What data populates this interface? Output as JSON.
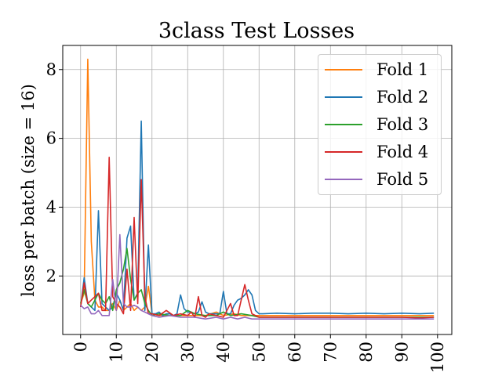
{
  "chart_data": {
    "type": "line",
    "title": "3class Test Losses",
    "xlabel": "",
    "ylabel": "loss per batch (size = 16)",
    "xlim": [
      -5,
      104
    ],
    "ylim": [
      0.3,
      8.7
    ],
    "xticks": [
      0,
      10,
      20,
      30,
      40,
      50,
      60,
      70,
      80,
      90,
      100
    ],
    "xtick_labels": [
      "0",
      "10",
      "20",
      "30",
      "40",
      "50",
      "60",
      "70",
      "80",
      "90",
      "100"
    ],
    "yticks": [
      2,
      4,
      6,
      8
    ],
    "ytick_labels": [
      "2",
      "4",
      "6",
      "8"
    ],
    "grid": true,
    "legend_position": "top-right",
    "series": [
      {
        "name": "Fold 1",
        "color": "#ff7f0e",
        "points": [
          [
            0,
            1.2
          ],
          [
            1,
            1.5
          ],
          [
            2,
            8.3
          ],
          [
            3,
            3.0
          ],
          [
            4,
            1.3
          ],
          [
            5,
            1.1
          ],
          [
            6,
            1.1
          ],
          [
            7,
            1.0
          ],
          [
            8,
            1.0
          ],
          [
            9,
            1.2
          ],
          [
            10,
            1.0
          ],
          [
            11,
            1.3
          ],
          [
            12,
            1.0
          ],
          [
            13,
            1.1
          ],
          [
            14,
            1.2
          ],
          [
            15,
            1.0
          ],
          [
            16,
            1.1
          ],
          [
            17,
            1.0
          ],
          [
            18,
            1.1
          ],
          [
            19,
            1.7
          ],
          [
            20,
            0.9
          ],
          [
            22,
            0.85
          ],
          [
            25,
            0.85
          ],
          [
            30,
            0.85
          ],
          [
            35,
            0.85
          ],
          [
            38,
            0.95
          ],
          [
            40,
            0.85
          ],
          [
            43,
            0.9
          ],
          [
            45,
            0.85
          ],
          [
            50,
            0.85
          ],
          [
            60,
            0.85
          ],
          [
            70,
            0.85
          ],
          [
            80,
            0.85
          ],
          [
            90,
            0.85
          ],
          [
            99,
            0.85
          ]
        ]
      },
      {
        "name": "Fold 2",
        "color": "#1f77b4",
        "points": [
          [
            0,
            1.1
          ],
          [
            1,
            1.95
          ],
          [
            2,
            1.2
          ],
          [
            3,
            1.1
          ],
          [
            4,
            1.0
          ],
          [
            5,
            3.9
          ],
          [
            6,
            1.2
          ],
          [
            7,
            1.1
          ],
          [
            8,
            1.0
          ],
          [
            9,
            1.1
          ],
          [
            10,
            1.5
          ],
          [
            11,
            1.3
          ],
          [
            12,
            1.0
          ],
          [
            13,
            3.1
          ],
          [
            14,
            3.45
          ],
          [
            15,
            1.3
          ],
          [
            16,
            1.5
          ],
          [
            17,
            6.5
          ],
          [
            18,
            1.0
          ],
          [
            19,
            2.9
          ],
          [
            20,
            0.9
          ],
          [
            21,
            0.9
          ],
          [
            22,
            0.95
          ],
          [
            23,
            0.85
          ],
          [
            24,
            0.9
          ],
          [
            25,
            0.9
          ],
          [
            26,
            0.85
          ],
          [
            27,
            0.9
          ],
          [
            28,
            1.45
          ],
          [
            29,
            1.05
          ],
          [
            30,
            0.95
          ],
          [
            31,
            0.95
          ],
          [
            32,
            0.9
          ],
          [
            33,
            0.95
          ],
          [
            34,
            1.25
          ],
          [
            35,
            0.95
          ],
          [
            36,
            0.9
          ],
          [
            37,
            0.9
          ],
          [
            38,
            0.9
          ],
          [
            39,
            0.9
          ],
          [
            40,
            1.55
          ],
          [
            41,
            0.9
          ],
          [
            42,
            0.9
          ],
          [
            43,
            1.15
          ],
          [
            44,
            1.3
          ],
          [
            45,
            1.35
          ],
          [
            46,
            1.45
          ],
          [
            47,
            1.6
          ],
          [
            48,
            1.45
          ],
          [
            49,
            1.0
          ],
          [
            50,
            0.9
          ],
          [
            51,
            0.9
          ],
          [
            55,
            0.92
          ],
          [
            60,
            0.9
          ],
          [
            65,
            0.92
          ],
          [
            70,
            0.92
          ],
          [
            75,
            0.9
          ],
          [
            80,
            0.92
          ],
          [
            85,
            0.9
          ],
          [
            90,
            0.92
          ],
          [
            95,
            0.9
          ],
          [
            99,
            0.92
          ]
        ]
      },
      {
        "name": "Fold 3",
        "color": "#2ca02c",
        "points": [
          [
            0,
            1.2
          ],
          [
            1,
            1.6
          ],
          [
            2,
            1.2
          ],
          [
            3,
            1.1
          ],
          [
            4,
            1.3
          ],
          [
            5,
            1.5
          ],
          [
            6,
            1.3
          ],
          [
            7,
            1.2
          ],
          [
            8,
            1.4
          ],
          [
            9,
            1.0
          ],
          [
            10,
            1.6
          ],
          [
            11,
            1.8
          ],
          [
            12,
            2.2
          ],
          [
            13,
            2.8
          ],
          [
            14,
            1.9
          ],
          [
            15,
            1.3
          ],
          [
            16,
            1.5
          ],
          [
            17,
            1.6
          ],
          [
            18,
            1.2
          ],
          [
            19,
            1.0
          ],
          [
            20,
            0.85
          ],
          [
            22,
            0.9
          ],
          [
            25,
            0.85
          ],
          [
            28,
            0.85
          ],
          [
            30,
            1.0
          ],
          [
            32,
            0.9
          ],
          [
            35,
            0.85
          ],
          [
            38,
            0.85
          ],
          [
            40,
            0.95
          ],
          [
            42,
            0.85
          ],
          [
            45,
            0.9
          ],
          [
            48,
            0.85
          ],
          [
            50,
            0.8
          ],
          [
            60,
            0.8
          ],
          [
            70,
            0.8
          ],
          [
            80,
            0.8
          ],
          [
            90,
            0.8
          ],
          [
            99,
            0.8
          ]
        ]
      },
      {
        "name": "Fold 4",
        "color": "#d62728",
        "points": [
          [
            0,
            1.1
          ],
          [
            1,
            1.8
          ],
          [
            2,
            1.2
          ],
          [
            3,
            1.3
          ],
          [
            4,
            1.4
          ],
          [
            5,
            1.5
          ],
          [
            6,
            1.0
          ],
          [
            7,
            1.0
          ],
          [
            8,
            5.45
          ],
          [
            9,
            1.4
          ],
          [
            10,
            1.2
          ],
          [
            11,
            1.1
          ],
          [
            12,
            0.9
          ],
          [
            13,
            2.2
          ],
          [
            14,
            1.0
          ],
          [
            15,
            3.7
          ],
          [
            16,
            1.2
          ],
          [
            17,
            4.8
          ],
          [
            18,
            1.4
          ],
          [
            19,
            0.9
          ],
          [
            20,
            0.9
          ],
          [
            22,
            0.85
          ],
          [
            24,
            1.0
          ],
          [
            26,
            0.85
          ],
          [
            28,
            0.9
          ],
          [
            30,
            0.85
          ],
          [
            31,
            0.95
          ],
          [
            32,
            0.8
          ],
          [
            33,
            1.4
          ],
          [
            34,
            0.85
          ],
          [
            35,
            0.8
          ],
          [
            36,
            0.9
          ],
          [
            38,
            0.85
          ],
          [
            40,
            0.8
          ],
          [
            42,
            1.2
          ],
          [
            43,
            0.85
          ],
          [
            44,
            0.85
          ],
          [
            45,
            1.3
          ],
          [
            46,
            1.75
          ],
          [
            47,
            1.3
          ],
          [
            48,
            0.9
          ],
          [
            50,
            0.8
          ],
          [
            60,
            0.8
          ],
          [
            70,
            0.8
          ],
          [
            80,
            0.8
          ],
          [
            90,
            0.8
          ],
          [
            95,
            0.78
          ],
          [
            99,
            0.8
          ]
        ]
      },
      {
        "name": "Fold 5",
        "color": "#9467bd",
        "points": [
          [
            0,
            1.15
          ],
          [
            1,
            1.05
          ],
          [
            2,
            1.1
          ],
          [
            3,
            0.9
          ],
          [
            4,
            0.9
          ],
          [
            5,
            1.0
          ],
          [
            6,
            0.85
          ],
          [
            7,
            0.85
          ],
          [
            8,
            0.85
          ],
          [
            9,
            1.9
          ],
          [
            10,
            1.0
          ],
          [
            11,
            3.2
          ],
          [
            12,
            1.2
          ],
          [
            13,
            1.1
          ],
          [
            14,
            1.1
          ],
          [
            15,
            1.15
          ],
          [
            16,
            1.1
          ],
          [
            17,
            1.0
          ],
          [
            18,
            0.95
          ],
          [
            19,
            0.9
          ],
          [
            20,
            0.85
          ],
          [
            22,
            0.8
          ],
          [
            25,
            0.85
          ],
          [
            28,
            0.8
          ],
          [
            30,
            0.8
          ],
          [
            32,
            0.8
          ],
          [
            35,
            0.75
          ],
          [
            38,
            0.8
          ],
          [
            40,
            0.75
          ],
          [
            42,
            0.8
          ],
          [
            44,
            0.75
          ],
          [
            46,
            0.8
          ],
          [
            48,
            0.75
          ],
          [
            50,
            0.75
          ],
          [
            60,
            0.75
          ],
          [
            70,
            0.75
          ],
          [
            80,
            0.75
          ],
          [
            90,
            0.75
          ],
          [
            99,
            0.75
          ]
        ]
      }
    ]
  }
}
